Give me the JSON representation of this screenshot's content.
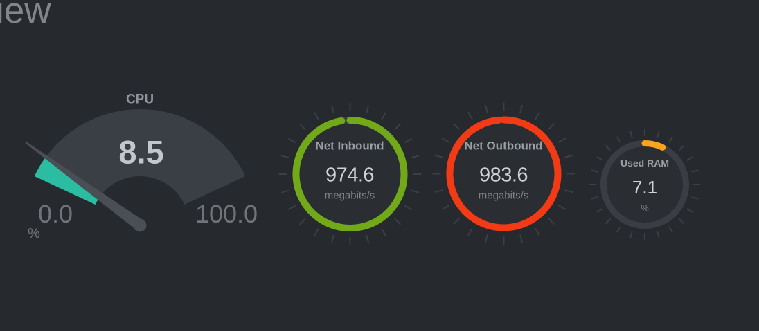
{
  "header": {
    "title_fragment": "iew"
  },
  "colors": {
    "background": "#26292E",
    "cpu_fill": "#2BBCA2",
    "cpu_track": "#3A3E45",
    "needle": "#4A4F55",
    "net_inbound_ring": "#72A918",
    "net_outbound_ring": "#F23B15",
    "used_ram_ring": "#F9A51D",
    "ring_track": "#3A3E44",
    "ring_interior": "#2A2E33",
    "tick": "#3B4046"
  },
  "chart_data": [
    {
      "type": "gauge",
      "style": "arc-meter",
      "title": "CPU",
      "value": 8.5,
      "display_value": "8.5",
      "unit": "%",
      "min": 0,
      "max": 100,
      "min_label": "0.0",
      "max_label": "100.0",
      "fill_fraction": 0.085,
      "color_key": "cpu_fill"
    },
    {
      "type": "gauge",
      "style": "circle",
      "title": "Net Inbound",
      "value": 974.6,
      "display_value": "974.6",
      "unit": "megabits/s",
      "ring_fraction": 0.975,
      "color_key": "net_inbound_ring"
    },
    {
      "type": "gauge",
      "style": "circle",
      "title": "Net Outbound",
      "value": 983.6,
      "display_value": "983.6",
      "unit": "megabits/s",
      "ring_fraction": 0.984,
      "color_key": "net_outbound_ring"
    },
    {
      "type": "gauge",
      "style": "circle",
      "title": "Used RAM",
      "value": 7.1,
      "display_value": "7.1",
      "unit": "%",
      "ring_fraction": 0.071,
      "color_key": "used_ram_ring"
    }
  ]
}
